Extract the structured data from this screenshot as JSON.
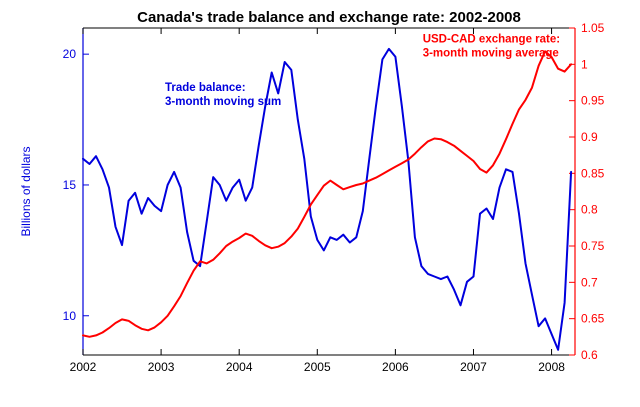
{
  "title": "Canada's trade balance and exchange rate: 2002-2008",
  "chart_data": {
    "type": "line",
    "title": "Canada's trade balance and exchange rate: 2002-2008",
    "x_range": [
      2002,
      2008.3
    ],
    "x_ticks": [
      2002,
      2003,
      2004,
      2005,
      2006,
      2007,
      2008
    ],
    "x_start": 2002,
    "x_step": 0.0833333,
    "left_axis": {
      "label": "Billions of dollars",
      "color": "#0000DD",
      "range": [
        8.5,
        21
      ],
      "ticks": [
        10,
        15,
        20
      ]
    },
    "right_axis": {
      "color": "#FF0000",
      "range": [
        0.6,
        1.05
      ],
      "ticks": [
        0.6,
        0.65,
        0.7,
        0.75,
        0.8,
        0.85,
        0.9,
        0.95,
        1,
        1.05
      ]
    },
    "series": [
      {
        "name": "Trade balance: 3-month moving sum",
        "axis": "left",
        "color": "#0000DD",
        "values": [
          16.0,
          15.8,
          16.1,
          15.6,
          14.9,
          13.4,
          12.7,
          14.4,
          14.7,
          13.9,
          14.5,
          14.2,
          14.0,
          15.0,
          15.5,
          14.9,
          13.2,
          12.1,
          11.9,
          13.6,
          15.3,
          15.0,
          14.4,
          14.9,
          15.2,
          14.4,
          14.9,
          16.5,
          18.0,
          19.3,
          18.5,
          19.7,
          19.4,
          17.5,
          16.0,
          13.8,
          12.9,
          12.5,
          13.0,
          12.9,
          13.1,
          12.8,
          13.0,
          14.0,
          16.0,
          18.0,
          19.8,
          20.2,
          19.9,
          18.0,
          15.9,
          13.0,
          11.9,
          11.6,
          11.5,
          11.4,
          11.5,
          11.0,
          10.4,
          11.3,
          11.5,
          13.9,
          14.1,
          13.7,
          14.9,
          15.6,
          15.5,
          13.9,
          12.0,
          10.8,
          9.6,
          9.9,
          9.3,
          8.7,
          10.5,
          15.5
        ]
      },
      {
        "name": "USD-CAD exchange rate: 3-month moving average",
        "axis": "right",
        "color": "#FF0000",
        "values": [
          0.627,
          0.625,
          0.627,
          0.631,
          0.637,
          0.644,
          0.649,
          0.647,
          0.641,
          0.636,
          0.634,
          0.638,
          0.645,
          0.654,
          0.667,
          0.681,
          0.699,
          0.716,
          0.729,
          0.726,
          0.731,
          0.74,
          0.75,
          0.756,
          0.761,
          0.767,
          0.764,
          0.757,
          0.751,
          0.747,
          0.749,
          0.754,
          0.763,
          0.774,
          0.79,
          0.807,
          0.82,
          0.833,
          0.84,
          0.834,
          0.828,
          0.831,
          0.834,
          0.836,
          0.84,
          0.844,
          0.849,
          0.854,
          0.859,
          0.864,
          0.869,
          0.877,
          0.886,
          0.894,
          0.898,
          0.897,
          0.893,
          0.888,
          0.881,
          0.874,
          0.867,
          0.856,
          0.851,
          0.861,
          0.877,
          0.897,
          0.918,
          0.938,
          0.951,
          0.968,
          0.998,
          1.018,
          1.01,
          0.994,
          0.99,
          1.0
        ]
      }
    ],
    "annotations": [
      {
        "id": "trade-balance-label",
        "lines": [
          "Trade balance:",
          "3-month moving sum"
        ],
        "color": "#0000DD",
        "x": 2003.05,
        "y": 18.6,
        "axis": "left"
      },
      {
        "id": "exchange-rate-label",
        "lines": [
          "USD-CAD exchange rate:",
          "3-month moving average"
        ],
        "color": "#FF0000",
        "x": 2006.35,
        "y": 20.45,
        "axis": "left"
      }
    ],
    "legend": "none",
    "grid": false
  }
}
